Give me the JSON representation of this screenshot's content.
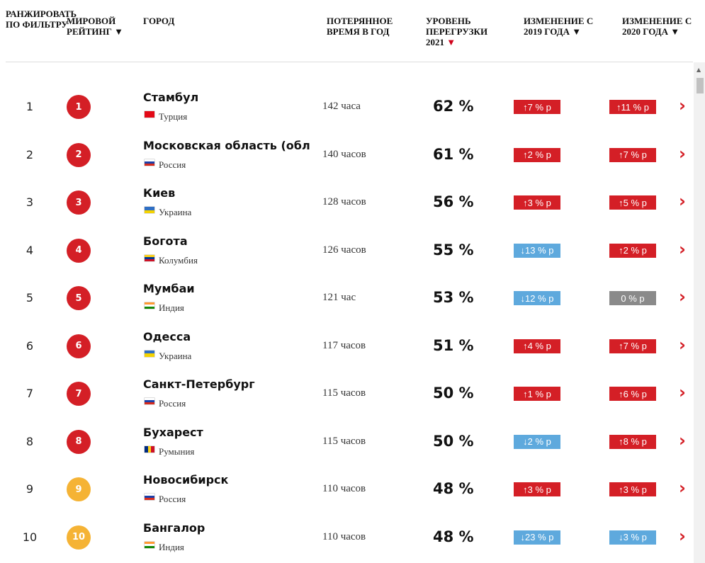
{
  "header": {
    "columns": [
      {
        "label": "Ранжировать по фильтру"
      },
      {
        "label": "Мировой рейтинг",
        "marker": "▼"
      },
      {
        "label": "Город"
      },
      {
        "label": "Потерянное время в год"
      },
      {
        "label": "Уровень перегрузки 2021",
        "marker": "▼",
        "marker_color": "#d0021b"
      },
      {
        "label": "Изменение с 2019 года",
        "marker": "▼"
      },
      {
        "label": "Изменение с 2020 года",
        "marker": "▼"
      }
    ]
  },
  "table": {
    "rows": [
      {
        "rank": "1",
        "world_rank": "1",
        "badge_color": "#d41f26",
        "city": "Стамбул",
        "country": "Турция",
        "flag": [
          "#e30a17"
        ],
        "time": "142 часа",
        "congestion": "62 %",
        "change_2019": {
          "text": "↑7 % р",
          "color": "#d41f26"
        },
        "change_2020": {
          "text": "↑11 % р",
          "color": "#d41f26"
        }
      },
      {
        "rank": "2",
        "world_rank": "2",
        "badge_color": "#d41f26",
        "city": "Московская область (обла",
        "country": "Россия",
        "flag": [
          "#ffffff",
          "#1c3fa8",
          "#d52b1e"
        ],
        "time": "140 часов",
        "congestion": "61 %",
        "change_2019": {
          "text": "↑2 % р",
          "color": "#d41f26"
        },
        "change_2020": {
          "text": "↑7 % р",
          "color": "#d41f26"
        }
      },
      {
        "rank": "3",
        "world_rank": "3",
        "badge_color": "#d41f26",
        "city": "Киев",
        "country": "Украина",
        "flag": [
          "#2f6fc4",
          "#f5d300"
        ],
        "time": "128 часов",
        "congestion": "56 %",
        "change_2019": {
          "text": "↑3 % р",
          "color": "#d41f26"
        },
        "change_2020": {
          "text": "↑5 % р",
          "color": "#d41f26"
        }
      },
      {
        "rank": "4",
        "world_rank": "4",
        "badge_color": "#d41f26",
        "city": "Богота",
        "country": "Колумбия",
        "flag": [
          "#fcd116",
          "#003893",
          "#ce1126"
        ],
        "time": "126 часов",
        "congestion": "55 %",
        "change_2019": {
          "text": "↓13 % р",
          "color": "#5ea9dd"
        },
        "change_2020": {
          "text": "↑2 % р",
          "color": "#d41f26"
        }
      },
      {
        "rank": "5",
        "world_rank": "5",
        "badge_color": "#d41f26",
        "city": "Мумбаи",
        "country": "Индия",
        "flag": [
          "#ff9933",
          "#ffffff",
          "#138808"
        ],
        "time": "121 час",
        "congestion": "53 %",
        "change_2019": {
          "text": "↓12 % р",
          "color": "#5ea9dd"
        },
        "change_2020": {
          "text": "0 % р",
          "color": "#8a8a8a"
        }
      },
      {
        "rank": "6",
        "world_rank": "6",
        "badge_color": "#d41f26",
        "city": "Одесса",
        "country": "Украина",
        "flag": [
          "#2f6fc4",
          "#f5d300"
        ],
        "time": "117 часов",
        "congestion": "51 %",
        "change_2019": {
          "text": "↑4 % р",
          "color": "#d41f26"
        },
        "change_2020": {
          "text": "↑7 % р",
          "color": "#d41f26"
        }
      },
      {
        "rank": "7",
        "world_rank": "7",
        "badge_color": "#d41f26",
        "city": "Санкт-Петербург",
        "country": "Россия",
        "flag": [
          "#ffffff",
          "#1c3fa8",
          "#d52b1e"
        ],
        "time": "115 часов",
        "congestion": "50 %",
        "change_2019": {
          "text": "↑1 % р",
          "color": "#d41f26"
        },
        "change_2020": {
          "text": "↑6 % р",
          "color": "#d41f26"
        }
      },
      {
        "rank": "8",
        "world_rank": "8",
        "badge_color": "#d41f26",
        "city": "Бухарест",
        "country": "Румыния",
        "flag": [
          "#002b7f",
          "#fcd116",
          "#ce1126"
        ],
        "flag_vertical": true,
        "time": "115 часов",
        "congestion": "50 %",
        "change_2019": {
          "text": "↓2 % р",
          "color": "#5ea9dd"
        },
        "change_2020": {
          "text": "↑8 % р",
          "color": "#d41f26"
        }
      },
      {
        "rank": "9",
        "world_rank": "9",
        "badge_color": "#f5b335",
        "city": "Новосибирск",
        "country": "Россия",
        "flag": [
          "#ffffff",
          "#1c3fa8",
          "#d52b1e"
        ],
        "time": "110 часов",
        "congestion": "48 %",
        "change_2019": {
          "text": "↑3 % р",
          "color": "#d41f26"
        },
        "change_2020": {
          "text": "↑3 % р",
          "color": "#d41f26"
        }
      },
      {
        "rank": "10",
        "world_rank": "10",
        "badge_color": "#f5b335",
        "city": "Бангалор",
        "country": "Индия",
        "flag": [
          "#ff9933",
          "#ffffff",
          "#138808"
        ],
        "time": "110 часов",
        "congestion": "48 %",
        "change_2019": {
          "text": "↓23 % р",
          "color": "#5ea9dd"
        },
        "change_2020": {
          "text": "↓3 % р",
          "color": "#5ea9dd"
        }
      }
    ]
  }
}
